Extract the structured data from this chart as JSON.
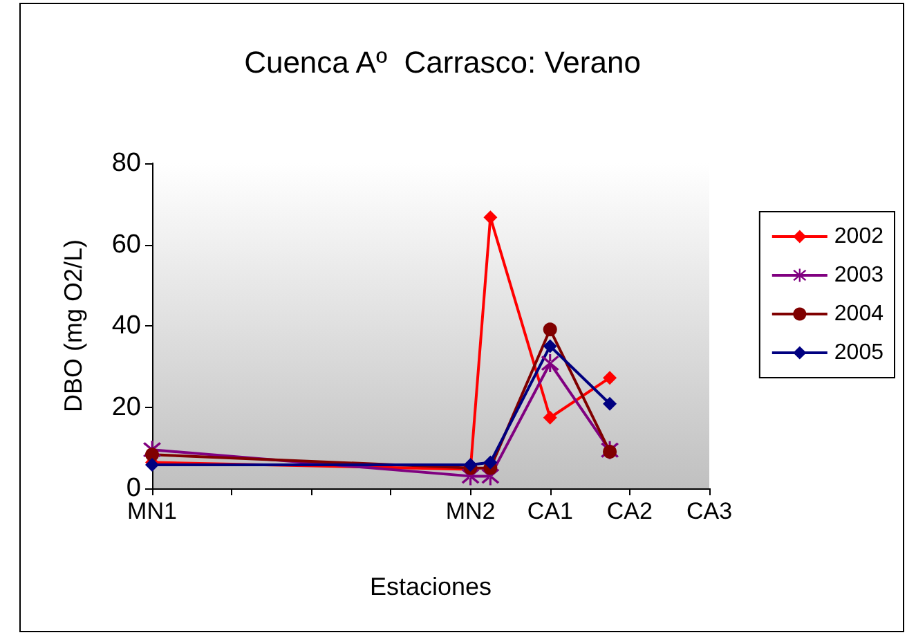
{
  "chart_data": {
    "type": "line",
    "title": "Cuenca Aº  Carrasco: Verano",
    "xlabel": "Estaciones",
    "ylabel": "DBO (mg O2/L)",
    "categories": [
      "MN1",
      null,
      null,
      null,
      null,
      null,
      null,
      null,
      null,
      null,
      null,
      null,
      null,
      null,
      null,
      null,
      "MN2",
      null,
      null,
      null,
      "CA1",
      null,
      null,
      null,
      "CA2",
      null,
      null,
      null,
      "CA3"
    ],
    "ylim": [
      0,
      80
    ],
    "yticks": [
      0,
      20,
      40,
      60,
      80
    ],
    "grid": false,
    "legend": "right",
    "series": [
      {
        "name": "2002",
        "color": "#ff0000",
        "marker": "diamond",
        "values": [
          6.4,
          null,
          null,
          null,
          null,
          null,
          null,
          null,
          null,
          null,
          null,
          null,
          null,
          null,
          null,
          null,
          4.7,
          66.7,
          null,
          null,
          17.4,
          null,
          null,
          27.2,
          null,
          null,
          null,
          null,
          null
        ]
      },
      {
        "name": "2003",
        "color": "#800080",
        "marker": "cross",
        "values": [
          9.5,
          null,
          null,
          null,
          null,
          null,
          null,
          null,
          null,
          null,
          null,
          null,
          null,
          null,
          null,
          null,
          3,
          3,
          null,
          null,
          30.8,
          null,
          null,
          9.4,
          null,
          null,
          null,
          null,
          null
        ]
      },
      {
        "name": "2004",
        "color": "#800000",
        "marker": "circle",
        "values": [
          8.3,
          null,
          null,
          null,
          null,
          null,
          null,
          null,
          null,
          null,
          null,
          null,
          null,
          null,
          null,
          null,
          5,
          5,
          null,
          null,
          39.1,
          null,
          null,
          9,
          null,
          null,
          null,
          null,
          null
        ]
      },
      {
        "name": "2005",
        "color": "#000080",
        "marker": "diamond",
        "values": [
          5.8,
          null,
          null,
          null,
          null,
          null,
          null,
          null,
          null,
          null,
          null,
          null,
          null,
          null,
          null,
          null,
          5.8,
          6.4,
          null,
          null,
          35,
          null,
          null,
          20.8,
          null,
          null,
          null,
          null,
          null
        ]
      }
    ]
  }
}
